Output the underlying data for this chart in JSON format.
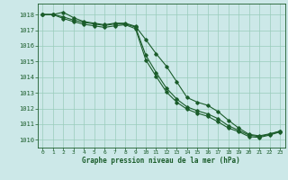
{
  "title": "Graphe pression niveau de la mer (hPa)",
  "bg_color": "#cce8e8",
  "grid_color": "#99ccbb",
  "line_color": "#1a5c2a",
  "xlim": [
    -0.5,
    23.5
  ],
  "ylim": [
    1009.5,
    1018.7
  ],
  "yticks": [
    1010,
    1011,
    1012,
    1013,
    1014,
    1015,
    1016,
    1017,
    1018
  ],
  "xticks": [
    0,
    1,
    2,
    3,
    4,
    5,
    6,
    7,
    8,
    9,
    10,
    11,
    12,
    13,
    14,
    15,
    16,
    17,
    18,
    19,
    20,
    21,
    22,
    23
  ],
  "series1": [
    1018.0,
    1018.0,
    1018.15,
    1017.8,
    1017.55,
    1017.45,
    1017.35,
    1017.45,
    1017.45,
    1017.25,
    1016.4,
    1015.5,
    1014.7,
    1013.7,
    1012.7,
    1012.4,
    1012.2,
    1011.8,
    1011.25,
    1010.75,
    1010.35,
    1010.25,
    1010.38,
    1010.55
  ],
  "series2": [
    1018.0,
    1018.0,
    1017.85,
    1017.65,
    1017.5,
    1017.4,
    1017.3,
    1017.4,
    1017.4,
    1017.2,
    1015.4,
    1014.3,
    1013.3,
    1012.6,
    1012.1,
    1011.85,
    1011.65,
    1011.35,
    1010.9,
    1010.6,
    1010.3,
    1010.2,
    1010.35,
    1010.55
  ],
  "series3": [
    1018.0,
    1018.0,
    1017.75,
    1017.55,
    1017.38,
    1017.28,
    1017.18,
    1017.28,
    1017.35,
    1017.1,
    1015.1,
    1014.05,
    1013.05,
    1012.4,
    1011.95,
    1011.7,
    1011.5,
    1011.15,
    1010.75,
    1010.52,
    1010.2,
    1010.15,
    1010.3,
    1010.5
  ]
}
